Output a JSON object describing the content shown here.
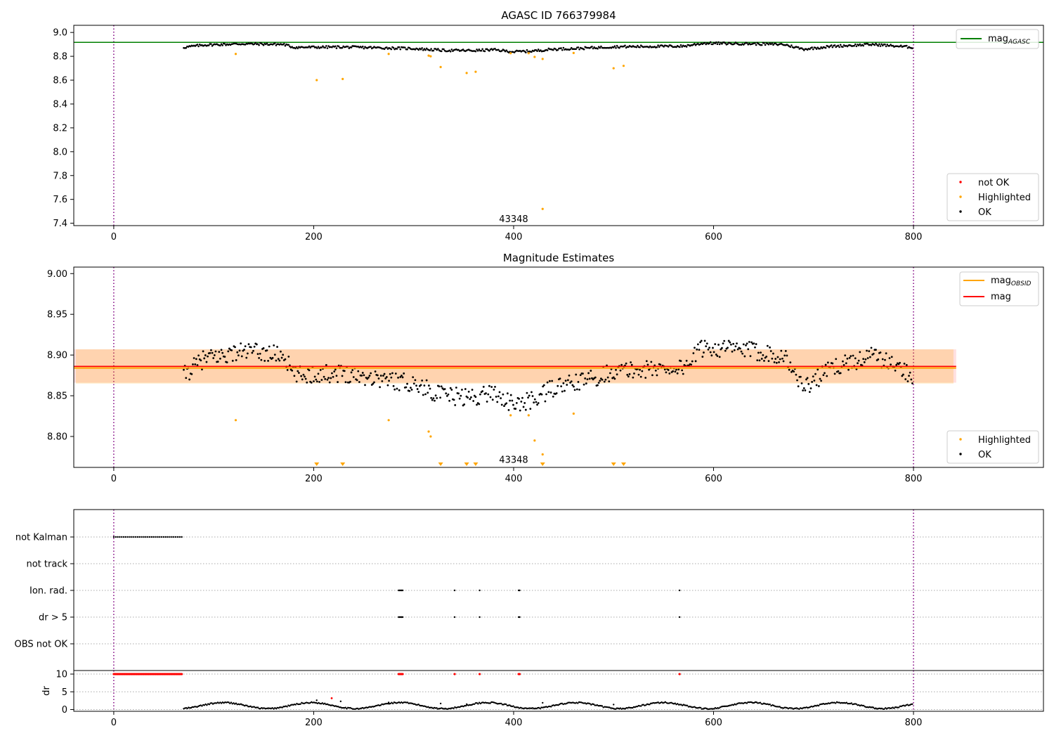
{
  "chart_data": [
    {
      "type": "scatter",
      "title": "AGASC ID 766379984",
      "xlabel": "",
      "ylabel": "",
      "xlim": [
        -40,
        930
      ],
      "ylim": [
        7.38,
        9.06
      ],
      "xticks": [
        "0",
        "200",
        "400",
        "600",
        "800"
      ],
      "yticks": [
        "7.4",
        "7.6",
        "7.8",
        "8.0",
        "8.2",
        "8.4",
        "8.6",
        "8.8",
        "9.0"
      ],
      "vlines": [
        0,
        800
      ],
      "hline": {
        "label_main": "mag",
        "label_sub": "AGASC",
        "y": 8.917,
        "color": "#008000"
      },
      "obsid_label": {
        "text": "43348",
        "x": 400,
        "y": 7.44
      },
      "legend_markers": [
        "not OK",
        "Highlighted",
        "OK"
      ],
      "series": [
        {
          "name": "OK",
          "color": "#000000",
          "x_start": 70,
          "x_end": 800,
          "n": 640,
          "curve": [
            [
              70,
              8.875
            ],
            [
              90,
              8.895
            ],
            [
              130,
              8.905
            ],
            [
              170,
              8.9
            ],
            [
              180,
              8.875
            ],
            [
              230,
              8.878
            ],
            [
              300,
              8.865
            ],
            [
              330,
              8.85
            ],
            [
              360,
              8.848
            ],
            [
              380,
              8.855
            ],
            [
              400,
              8.838
            ],
            [
              420,
              8.845
            ],
            [
              440,
              8.86
            ],
            [
              470,
              8.868
            ],
            [
              500,
              8.88
            ],
            [
              570,
              8.885
            ],
            [
              590,
              8.91
            ],
            [
              640,
              8.905
            ],
            [
              670,
              8.9
            ],
            [
              690,
              8.86
            ],
            [
              720,
              8.885
            ],
            [
              760,
              8.9
            ],
            [
              800,
              8.875
            ]
          ]
        },
        {
          "name": "Highlighted",
          "color": "#ffa500",
          "points": [
            [
              122,
              8.82
            ],
            [
              203,
              8.6
            ],
            [
              229,
              8.61
            ],
            [
              275,
              8.82
            ],
            [
              315,
              8.806
            ],
            [
              317,
              8.8
            ],
            [
              327,
              8.71
            ],
            [
              353,
              8.66
            ],
            [
              362,
              8.67
            ],
            [
              397,
              8.826
            ],
            [
              415,
              8.826
            ],
            [
              421,
              8.795
            ],
            [
              429,
              8.778
            ],
            [
              429,
              7.52
            ],
            [
              460,
              8.828
            ],
            [
              500,
              8.7
            ],
            [
              510,
              8.72
            ]
          ]
        }
      ]
    },
    {
      "type": "scatter",
      "title": "Magnitude Estimates",
      "xlabel": "",
      "ylabel": "",
      "xlim": [
        -40,
        930
      ],
      "ylim": [
        8.762,
        9.008
      ],
      "xticks": [
        "0",
        "200",
        "400",
        "600",
        "800"
      ],
      "yticks": [
        "8.80",
        "8.85",
        "8.90",
        "8.95",
        "9.00"
      ],
      "vlines": [
        0,
        800
      ],
      "mag_line": {
        "label": "mag",
        "y": 8.886,
        "band": [
          8.866,
          8.907
        ],
        "color": "#ff0000"
      },
      "mag_obsid": {
        "label_main": "mag",
        "label_sub": "OBSID",
        "y": 8.884,
        "band": [
          8.865,
          8.907
        ],
        "color": "#ffa500"
      },
      "obsid_label": {
        "text": "43348",
        "x": 400,
        "y": 8.772
      },
      "legend_markers": [
        "Highlighted",
        "OK"
      ],
      "series": [
        {
          "name": "OK",
          "color": "#000000",
          "x_start": 70,
          "x_end": 800,
          "n": 640,
          "curve": [
            [
              70,
              8.875
            ],
            [
              90,
              8.895
            ],
            [
              130,
              8.905
            ],
            [
              170,
              8.9
            ],
            [
              180,
              8.875
            ],
            [
              230,
              8.878
            ],
            [
              300,
              8.865
            ],
            [
              330,
              8.85
            ],
            [
              360,
              8.848
            ],
            [
              380,
              8.855
            ],
            [
              400,
              8.838
            ],
            [
              420,
              8.845
            ],
            [
              440,
              8.86
            ],
            [
              470,
              8.868
            ],
            [
              500,
              8.88
            ],
            [
              570,
              8.885
            ],
            [
              590,
              8.91
            ],
            [
              640,
              8.905
            ],
            [
              670,
              8.9
            ],
            [
              690,
              8.86
            ],
            [
              720,
              8.885
            ],
            [
              760,
              8.9
            ],
            [
              800,
              8.875
            ]
          ]
        },
        {
          "name": "Highlighted",
          "color": "#ffa500",
          "points": [
            [
              122,
              8.82
            ],
            [
              275,
              8.82
            ],
            [
              315,
              8.806
            ],
            [
              317,
              8.8
            ],
            [
              397,
              8.826
            ],
            [
              415,
              8.826
            ],
            [
              421,
              8.795
            ],
            [
              429,
              8.778
            ],
            [
              460,
              8.828
            ]
          ]
        },
        {
          "name": "Highlighted (below axis)",
          "color": "#ffa500",
          "marker": "triangle-down",
          "x": [
            203,
            229,
            327,
            353,
            362,
            429,
            500,
            510
          ]
        }
      ]
    },
    {
      "type": "scatter",
      "title": "",
      "xlabel": "",
      "ylabel": "",
      "xlim": [
        -40,
        930
      ],
      "categories": [
        "not Kalman",
        "not track",
        "Ion. rad.",
        "dr > 5",
        "OBS not OK"
      ],
      "vlines": [
        0,
        800
      ],
      "flags": {
        "not Kalman": {
          "x_start": 0,
          "x_end": 68,
          "step": 2
        },
        "not track": {
          "x": []
        },
        "Ion. rad.": {
          "x": [
            285,
            286,
            287,
            288,
            289,
            341,
            366,
            405,
            406,
            566
          ]
        },
        "dr > 5": {
          "x": [
            285,
            286,
            287,
            288,
            289,
            341,
            366,
            405,
            406,
            566
          ]
        },
        "OBS not OK": {
          "x": []
        }
      }
    },
    {
      "type": "scatter",
      "title": "",
      "xlabel": "",
      "ylabel": "dr",
      "xlim": [
        -40,
        930
      ],
      "ylim": [
        -0.5,
        11
      ],
      "xticks": [
        "0",
        "200",
        "400",
        "600",
        "800"
      ],
      "yticks": [
        "0",
        "5",
        "10"
      ],
      "vlines": [
        0,
        800
      ],
      "clipped": {
        "y": 10,
        "color": "#ff0000",
        "x_start": 0,
        "x_end": 68,
        "step": 1,
        "extra_x": [
          285,
          286,
          287,
          288,
          289,
          341,
          366,
          405,
          406,
          566
        ]
      },
      "dr_series": {
        "color": "#000000",
        "x_start": 70,
        "x_end": 800,
        "n": 600
      },
      "dr_red_point": [
        218,
        3.2
      ],
      "dr_outliers": [
        [
          203,
          2.6
        ],
        [
          227,
          2.3
        ],
        [
          275,
          2.0
        ],
        [
          327,
          1.7
        ],
        [
          353,
          1.5
        ],
        [
          429,
          1.9
        ],
        [
          500,
          1.4
        ]
      ]
    }
  ]
}
